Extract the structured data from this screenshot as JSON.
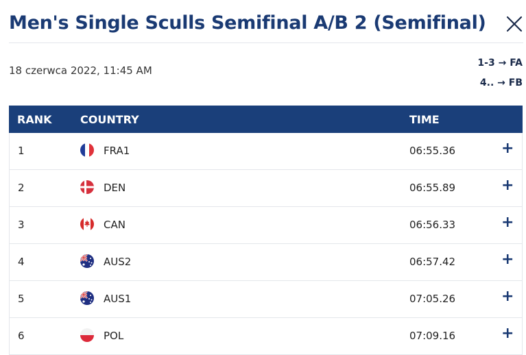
{
  "header": {
    "title": "Men's Single Sculls Semifinal A/B 2 (Semifinal)",
    "date": "18 czerwca 2022, 11:45 AM",
    "progression": [
      "1-3 → FA",
      "4.. → FB"
    ]
  },
  "table": {
    "headers": {
      "rank": "RANK",
      "country": "COUNTRY",
      "time": "TIME"
    },
    "rows": [
      {
        "rank": "1",
        "country": "FRA1",
        "flag": "france-flag-icon",
        "time": "06:55.36"
      },
      {
        "rank": "2",
        "country": "DEN",
        "flag": "denmark-flag-icon",
        "time": "06:55.89"
      },
      {
        "rank": "3",
        "country": "CAN",
        "flag": "canada-flag-icon",
        "time": "06:56.33"
      },
      {
        "rank": "4",
        "country": "AUS2",
        "flag": "australia-flag-icon",
        "time": "06:57.42"
      },
      {
        "rank": "5",
        "country": "AUS1",
        "flag": "australia-flag-icon",
        "time": "07:05.26"
      },
      {
        "rank": "6",
        "country": "POL",
        "flag": "poland-flag-icon",
        "time": "07:09.16"
      }
    ],
    "expand_symbol": "+"
  },
  "colors": {
    "title": "#1a3a73",
    "header_bg": "#1a3f7a",
    "header_text": "#ffffff",
    "row_border": "#e3e6eb"
  },
  "icons": {
    "close": "close-icon",
    "expand": "plus-icon"
  }
}
